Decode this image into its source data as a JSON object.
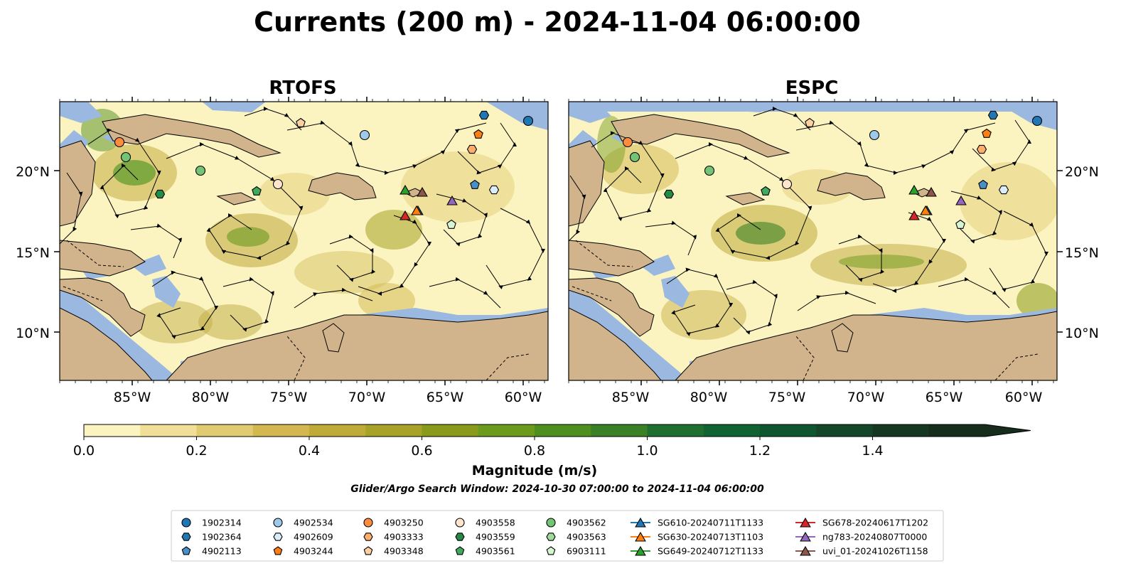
{
  "title": "Currents (200 m) - 2024-11-04 06:00:00",
  "panels": [
    {
      "id": "rtofs",
      "title": "RTOFS"
    },
    {
      "id": "espc",
      "title": "ESPC"
    }
  ],
  "lon_ticks": [
    "85°W",
    "80°W",
    "75°W",
    "70°W",
    "65°W",
    "60°W"
  ],
  "lat_ticks": [
    "20°N",
    "15°N",
    "10°N"
  ],
  "colorbar": {
    "label": "Magnitude (m/s)",
    "ticks": [
      "0.0",
      "0.2",
      "0.4",
      "0.6",
      "0.8",
      "1.0",
      "1.2",
      "1.4"
    ],
    "colors": [
      "#fbf3c0",
      "#efdf98",
      "#e1cb70",
      "#d2b84e",
      "#bfac38",
      "#a8a326",
      "#8a9a1a",
      "#6c9a1a",
      "#4f8f1f",
      "#3a8024",
      "#1f7030",
      "#126332",
      "#0f5530",
      "#15462a",
      "#163822",
      "#162c1c"
    ]
  },
  "search_window": "Glider/Argo Search Window: 2024-10-30 07:00:00 to 2024-11-04 06:00:00",
  "legend": {
    "columns": [
      [
        {
          "label": "1902314",
          "marker": "circle",
          "color": "#1f77b4"
        },
        {
          "label": "1902364",
          "marker": "hexagon",
          "color": "#1f77b4"
        },
        {
          "label": "4902113",
          "marker": "pentagon",
          "color": "#4a90c8"
        }
      ],
      [
        {
          "label": "4902534",
          "marker": "circle",
          "color": "#9ecae9"
        },
        {
          "label": "4902609",
          "marker": "hexagon",
          "color": "#d9ecf8"
        },
        {
          "label": "4903244",
          "marker": "pentagon",
          "color": "#fd7e14"
        }
      ],
      [
        {
          "label": "4903250",
          "marker": "circle",
          "color": "#fd8d3c"
        },
        {
          "label": "4903333",
          "marker": "hexagon",
          "color": "#fdae6b"
        },
        {
          "label": "4903348",
          "marker": "pentagon",
          "color": "#fdd0a2"
        }
      ],
      [
        {
          "label": "4903558",
          "marker": "circle",
          "color": "#fee6ce"
        },
        {
          "label": "4903559",
          "marker": "hexagon",
          "color": "#238b45"
        },
        {
          "label": "4903561",
          "marker": "pentagon",
          "color": "#41ab5d"
        }
      ],
      [
        {
          "label": "4903562",
          "marker": "circle",
          "color": "#74c476"
        },
        {
          "label": "4903563",
          "marker": "hexagon",
          "color": "#a1d99b"
        },
        {
          "label": "6903111",
          "marker": "pentagon",
          "color": "#d7f5d3"
        }
      ],
      [
        {
          "label": "SG610-20240711T1133",
          "marker": "triangle",
          "color": "#1f77b4"
        },
        {
          "label": "SG630-20240713T1103",
          "marker": "triangle",
          "color": "#ff7f0e"
        },
        {
          "label": "SG649-20240712T1133",
          "marker": "triangle",
          "color": "#2ca02c"
        }
      ],
      [
        {
          "label": "SG678-20240617T1202",
          "marker": "triangle",
          "color": "#d62728"
        },
        {
          "label": "ng783-20240807T0000",
          "marker": "triangle",
          "color": "#9467bd"
        },
        {
          "label": "uvi_01-20241026T1158",
          "marker": "triangle",
          "color": "#8c564b"
        }
      ]
    ]
  },
  "colors": {
    "land": "#d2b48c",
    "water_low": "#fbf3c0",
    "no_data": "#9ab8e0"
  }
}
